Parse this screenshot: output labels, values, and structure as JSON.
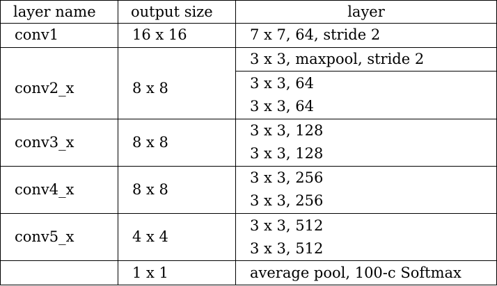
{
  "table": {
    "headers": {
      "name": "layer name",
      "size": "output size",
      "layer": "layer"
    },
    "rows": [
      {
        "name": "conv1",
        "size": "16 x 16",
        "layers": [
          "7 x 7, 64, stride 2"
        ]
      },
      {
        "name": "conv2_x",
        "size": "8 x 8",
        "layers": [
          "3 x 3, maxpool, stride 2",
          "3 x 3, 64",
          "3 x 3, 64"
        ]
      },
      {
        "name": "conv3_x",
        "size": "8 x 8",
        "layers": [
          "3 x 3, 128",
          "3 x 3, 128"
        ]
      },
      {
        "name": "conv4_x",
        "size": "8 x 8",
        "layers": [
          "3 x 3, 256",
          "3 x 3, 256"
        ]
      },
      {
        "name": "conv5_x",
        "size": "4 x 4",
        "layers": [
          "3 x 3, 512",
          "3 x 3, 512"
        ]
      },
      {
        "name": "",
        "size": "1 x 1",
        "layers": [
          "average pool, 100-c Softmax"
        ]
      }
    ]
  },
  "colors": {
    "text": "#000000",
    "border": "#000000",
    "background": "#ffffff"
  }
}
